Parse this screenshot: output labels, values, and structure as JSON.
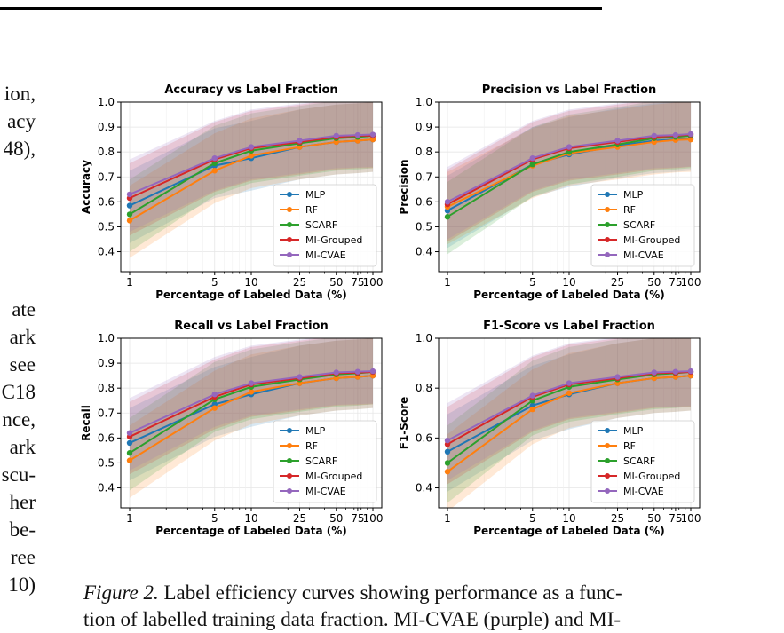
{
  "body_text": {
    "upper_lines": [
      "ion,",
      "acy",
      "48),"
    ],
    "lower_lines": [
      "ate",
      "ark",
      "see",
      "C18",
      "nce,",
      "ark",
      "scu-",
      "her",
      "be-",
      "ree",
      "10)"
    ]
  },
  "caption": {
    "label": "Figure 2.",
    "line1": " Label efficiency curves showing performance as a func-",
    "line2": "tion of labelled training data fraction. MI-CVAE (purple) and MI-"
  },
  "colors": {
    "MLP": "#1f77b4",
    "RF": "#ff7f0e",
    "SCARF": "#2ca02c",
    "MI-Grouped": "#d62728",
    "MI-CVAE": "#9467bd"
  },
  "chart_data": [
    {
      "id": "accuracy",
      "type": "line",
      "title": "Accuracy vs Label Fraction",
      "xlabel": "Percentage of Labeled Data (%)",
      "ylabel": "Accuracy",
      "xscale": "log",
      "x": [
        1,
        5,
        10,
        25,
        50,
        75,
        100
      ],
      "xtick_labels": [
        "1",
        "5",
        "10",
        "25",
        "50",
        "75",
        "100"
      ],
      "ylim": [
        0.32,
        1.0
      ],
      "yticks": [
        0.4,
        0.5,
        0.6,
        0.7,
        0.8,
        0.9,
        1.0
      ],
      "ytick_labels": [
        "0.4",
        "0.5",
        "0.6",
        "0.7",
        "0.8",
        "0.9",
        "1.0"
      ],
      "grid": true,
      "legend": "lower right",
      "series": [
        {
          "name": "MLP",
          "values": [
            0.585,
            0.745,
            0.775,
            0.82,
            0.84,
            0.845,
            0.85
          ],
          "band": 0.13
        },
        {
          "name": "RF",
          "values": [
            0.525,
            0.725,
            0.785,
            0.82,
            0.84,
            0.845,
            0.85
          ],
          "band": 0.13
        },
        {
          "name": "SCARF",
          "values": [
            0.55,
            0.755,
            0.805,
            0.835,
            0.855,
            0.86,
            0.865
          ],
          "band": 0.13
        },
        {
          "name": "MI-Grouped",
          "values": [
            0.615,
            0.77,
            0.815,
            0.84,
            0.86,
            0.865,
            0.865
          ],
          "band": 0.13
        },
        {
          "name": "MI-CVAE",
          "values": [
            0.63,
            0.775,
            0.82,
            0.845,
            0.865,
            0.868,
            0.87
          ],
          "band": 0.13
        }
      ]
    },
    {
      "id": "precision",
      "type": "line",
      "title": "Precision vs Label Fraction",
      "xlabel": "Percentage of Labeled Data (%)",
      "ylabel": "Precision",
      "xscale": "log",
      "x": [
        1,
        5,
        10,
        25,
        50,
        75,
        100
      ],
      "xtick_labels": [
        "1",
        "5",
        "10",
        "25",
        "50",
        "75",
        "100"
      ],
      "ylim": [
        0.32,
        1.0
      ],
      "yticks": [
        0.4,
        0.5,
        0.6,
        0.7,
        0.8,
        0.9,
        1.0
      ],
      "ytick_labels": [
        "0.4",
        "0.5",
        "0.6",
        "0.7",
        "0.8",
        "0.9",
        "1.0"
      ],
      "grid": true,
      "legend": "lower right",
      "series": [
        {
          "name": "MLP",
          "values": [
            0.565,
            0.75,
            0.79,
            0.825,
            0.845,
            0.85,
            0.855
          ],
          "band": 0.13
        },
        {
          "name": "RF",
          "values": [
            0.58,
            0.745,
            0.795,
            0.82,
            0.84,
            0.848,
            0.85
          ],
          "band": 0.13
        },
        {
          "name": "SCARF",
          "values": [
            0.54,
            0.75,
            0.8,
            0.83,
            0.855,
            0.86,
            0.865
          ],
          "band": 0.13
        },
        {
          "name": "MI-Grouped",
          "values": [
            0.59,
            0.77,
            0.815,
            0.84,
            0.86,
            0.865,
            0.87
          ],
          "band": 0.13
        },
        {
          "name": "MI-CVAE",
          "values": [
            0.6,
            0.775,
            0.82,
            0.845,
            0.865,
            0.868,
            0.872
          ],
          "band": 0.13
        }
      ]
    },
    {
      "id": "recall",
      "type": "line",
      "title": "Recall vs Label Fraction",
      "xlabel": "Percentage of Labeled Data (%)",
      "ylabel": "Recall",
      "xscale": "log",
      "x": [
        1,
        5,
        10,
        25,
        50,
        75,
        100
      ],
      "xtick_labels": [
        "1",
        "5",
        "10",
        "25",
        "50",
        "75",
        "100"
      ],
      "ylim": [
        0.32,
        1.0
      ],
      "yticks": [
        0.4,
        0.5,
        0.6,
        0.7,
        0.8,
        0.9,
        1.0
      ],
      "ytick_labels": [
        "0.4",
        "0.5",
        "0.6",
        "0.7",
        "0.8",
        "0.9",
        "1.0"
      ],
      "grid": true,
      "legend": "lower right",
      "series": [
        {
          "name": "MLP",
          "values": [
            0.58,
            0.735,
            0.775,
            0.82,
            0.84,
            0.845,
            0.85
          ],
          "band": 0.13
        },
        {
          "name": "RF",
          "values": [
            0.51,
            0.72,
            0.785,
            0.82,
            0.84,
            0.845,
            0.85
          ],
          "band": 0.13
        },
        {
          "name": "SCARF",
          "values": [
            0.54,
            0.755,
            0.805,
            0.835,
            0.855,
            0.86,
            0.865
          ],
          "band": 0.13
        },
        {
          "name": "MI-Grouped",
          "values": [
            0.605,
            0.765,
            0.815,
            0.84,
            0.86,
            0.862,
            0.865
          ],
          "band": 0.13
        },
        {
          "name": "MI-CVAE",
          "values": [
            0.62,
            0.775,
            0.82,
            0.845,
            0.863,
            0.866,
            0.868
          ],
          "band": 0.13
        }
      ]
    },
    {
      "id": "f1",
      "type": "line",
      "title": "F1-Score vs Label Fraction",
      "xlabel": "Percentage of Labeled Data (%)",
      "ylabel": "F1-Score",
      "xscale": "log",
      "x": [
        1,
        5,
        10,
        25,
        50,
        75,
        100
      ],
      "xtick_labels": [
        "1",
        "5",
        "10",
        "25",
        "50",
        "75",
        "100"
      ],
      "ylim": [
        0.32,
        1.0
      ],
      "yticks": [
        0.4,
        0.6,
        0.8,
        1.0
      ],
      "ytick_labels": [
        "0.4",
        "0.6",
        "0.8",
        "1.0"
      ],
      "grid": true,
      "legend": "lower right",
      "series": [
        {
          "name": "MLP",
          "values": [
            0.545,
            0.73,
            0.775,
            0.82,
            0.84,
            0.845,
            0.85
          ],
          "band": 0.14
        },
        {
          "name": "RF",
          "values": [
            0.465,
            0.715,
            0.78,
            0.82,
            0.84,
            0.845,
            0.85
          ],
          "band": 0.14
        },
        {
          "name": "SCARF",
          "values": [
            0.5,
            0.75,
            0.805,
            0.835,
            0.855,
            0.86,
            0.865
          ],
          "band": 0.14
        },
        {
          "name": "MI-Grouped",
          "values": [
            0.575,
            0.765,
            0.815,
            0.84,
            0.86,
            0.862,
            0.865
          ],
          "band": 0.14
        },
        {
          "name": "MI-CVAE",
          "values": [
            0.59,
            0.77,
            0.82,
            0.845,
            0.863,
            0.866,
            0.868
          ],
          "band": 0.14
        }
      ]
    }
  ]
}
